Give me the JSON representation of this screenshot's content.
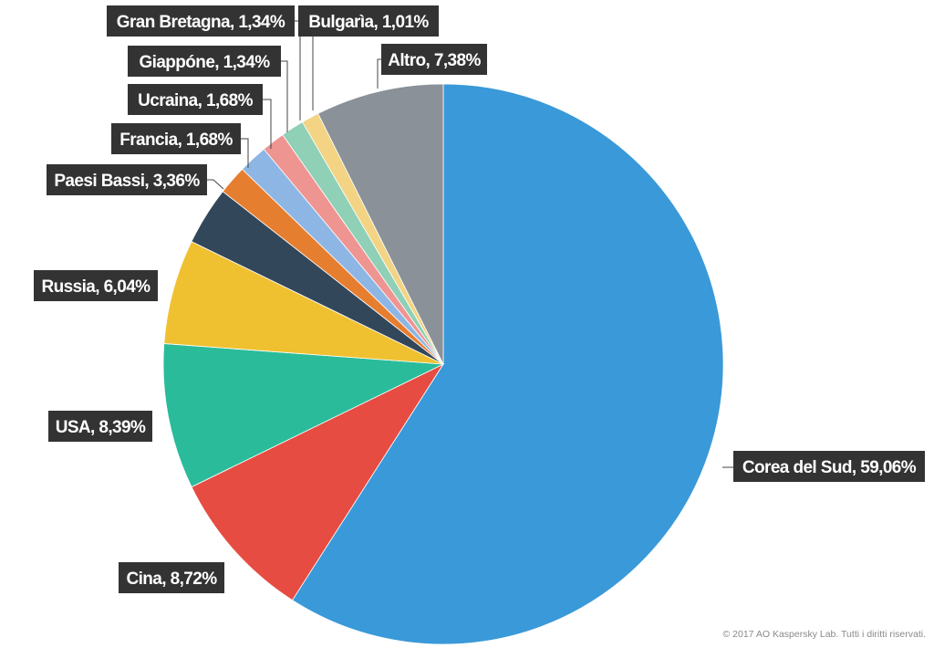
{
  "chart_data": {
    "type": "pie",
    "slices": [
      {
        "label": "Corea del Sud, 59,06%",
        "value": 59.06,
        "color": "#3a99d8"
      },
      {
        "label": "Cina, 8,72%",
        "value": 8.72,
        "color": "#e64c41"
      },
      {
        "label": "USA, 8,39%",
        "value": 8.39,
        "color": "#2abb9b"
      },
      {
        "label": "Russia, 6,04%",
        "value": 6.04,
        "color": "#efc131"
      },
      {
        "label": "Paesi Bassi, 3,36%",
        "value": 3.36,
        "color": "#33475b"
      },
      {
        "label": "Francia, 1,68%",
        "value": 1.68,
        "color": "#e67e30"
      },
      {
        "label": "Ucraina, 1,68%",
        "value": 1.68,
        "color": "#8eb6e5"
      },
      {
        "label": "Giappóne, 1,34%",
        "value": 1.34,
        "color": "#ee9592"
      },
      {
        "label": "Gran Bretagna, 1,34%",
        "value": 1.34,
        "color": "#8fd0b6"
      },
      {
        "label": "Bulgarìa, 1,01%",
        "value": 1.01,
        "color": "#f3d384"
      },
      {
        "label": "Altro, 7,38%",
        "value": 7.38,
        "color": "#8a9198"
      }
    ],
    "start": "12 o'clock",
    "direction": "clockwise",
    "legend": "none"
  },
  "footer": {
    "copyright": "© 2017 AO Kaspersky Lab. Tutti i diritti riservati."
  }
}
